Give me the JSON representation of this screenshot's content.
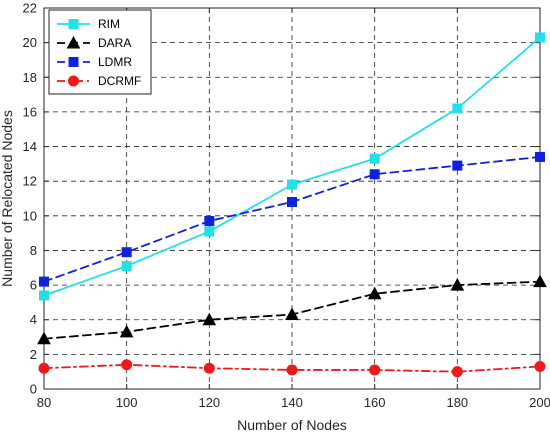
{
  "chart_data": {
    "type": "line",
    "title": "",
    "xlabel": "Number of Nodes",
    "ylabel": "Number of Relocated Nodes",
    "x": [
      80,
      100,
      120,
      140,
      160,
      180,
      200
    ],
    "xlim": [
      80,
      200
    ],
    "ylim": [
      0,
      22
    ],
    "x_ticks": [
      "80",
      "100",
      "120",
      "140",
      "160",
      "180",
      "200"
    ],
    "y_ticks": [
      "0",
      "2",
      "4",
      "6",
      "8",
      "10",
      "12",
      "14",
      "16",
      "18",
      "20",
      "22"
    ],
    "grid": true,
    "legend_position": "top-left",
    "series": [
      {
        "name": "RIM",
        "values": [
          5.4,
          7.1,
          9.1,
          11.8,
          13.3,
          16.2,
          20.3
        ],
        "color": "#22e0ea",
        "line_style": "solid",
        "marker": "square"
      },
      {
        "name": "DARA",
        "values": [
          2.9,
          3.3,
          4.0,
          4.3,
          5.5,
          6.0,
          6.2
        ],
        "color": "#000000",
        "line_style": "dashed",
        "marker": "triangle"
      },
      {
        "name": "LDMR",
        "values": [
          6.2,
          7.9,
          9.7,
          10.8,
          12.4,
          12.9,
          13.4
        ],
        "color": "#1020e0",
        "line_style": "dashed",
        "marker": "square"
      },
      {
        "name": "DCRMF",
        "values": [
          1.2,
          1.4,
          1.2,
          1.1,
          1.1,
          1.0,
          1.3
        ],
        "color": "#f01818",
        "line_style": "dashdot",
        "marker": "circle"
      }
    ]
  }
}
